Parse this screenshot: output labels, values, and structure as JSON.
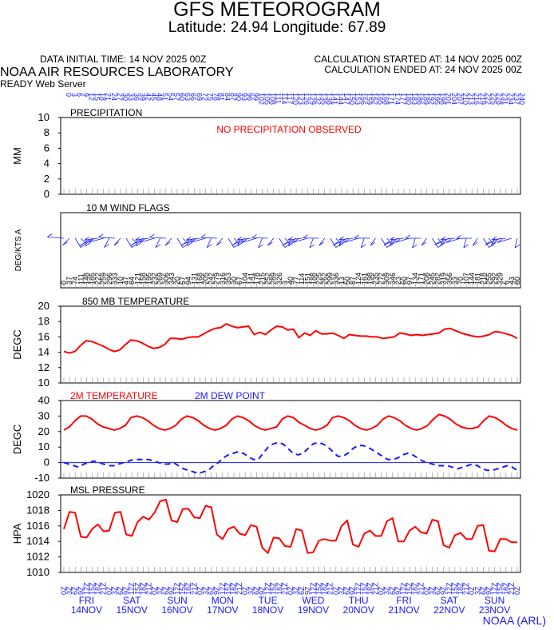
{
  "header": {
    "title": "GFS METEOROGRAM",
    "subtitle": "Latitude: 24.94 Longitude:  67.89",
    "init_time": "DATA INITIAL TIME: 14 NOV 2025 00Z",
    "calc_start": "CALCULATION STARTED AT: 14 NOV 2025 00Z",
    "calc_end": "CALCULATION ENDED AT: 24 NOV 2025 00Z",
    "lab": "NOAA AIR RESOURCES LABORATORY",
    "server": "READY Web Server",
    "credit": "NOAA (ARL)"
  },
  "colors": {
    "red": "#ff0000",
    "blue": "#1a1aff",
    "black": "#000000"
  },
  "chart_data": [
    {
      "type": "line",
      "id": "precip",
      "title": "PRECIPITATION",
      "ylabel": "MM",
      "ylim": [
        0,
        10
      ],
      "yticks": [
        "0",
        "2",
        "4",
        "6",
        "8",
        "10"
      ],
      "annotation": "NO PRECIPITATION OBSERVED",
      "series": []
    },
    {
      "type": "scatter",
      "id": "wind",
      "title": "10 M  WIND FLAGS",
      "ylabel": "DEG/KTS  A",
      "series": []
    },
    {
      "type": "line",
      "id": "t850",
      "title": "850 MB  TEMPERATURE",
      "ylabel": "DEGC",
      "ylim": [
        10,
        20
      ],
      "yticks": [
        "10",
        "12",
        "14",
        "16",
        "18",
        "20"
      ],
      "series": [
        {
          "values": [
            14.1,
            13.9,
            14.1,
            14.9,
            15.5,
            15.4,
            15.1,
            14.8,
            14.4,
            14.1,
            14.3,
            15.0,
            15.6,
            15.5,
            15.2,
            14.8,
            14.5,
            14.6,
            15.0,
            15.8,
            15.8,
            15.7,
            15.9,
            16.0,
            16.0,
            16.4,
            16.8,
            17.1,
            17.2,
            17.7,
            17.4,
            17.2,
            17.3,
            17.4,
            16.3,
            16.6,
            16.3,
            16.9,
            17.4,
            17.3,
            16.9,
            17.0,
            15.9,
            16.5,
            16.2,
            16.8,
            16.4,
            16.4,
            16.5,
            16.2,
            15.8,
            16.3,
            16.2,
            16.1,
            16.1,
            16.0,
            16.0,
            15.8,
            15.9,
            16.0,
            16.5,
            16.4,
            16.2,
            16.3,
            16.2,
            16.3,
            16.4,
            16.5,
            17.0,
            17.1,
            16.8,
            16.5,
            16.3,
            16.1,
            16.0,
            16.1,
            16.3,
            16.7,
            16.6,
            16.4,
            16.2,
            15.8
          ]
        }
      ]
    },
    {
      "type": "line",
      "id": "t2m",
      "title": "2M TEMPERATURE",
      "legend2": "2M  DEW POINT",
      "ylabel": "DEGC",
      "ylim": [
        -10,
        40
      ],
      "yticks": [
        "-10",
        "0",
        "10",
        "20",
        "30",
        "40"
      ],
      "series": [
        {
          "name": "2M TEMPERATURE",
          "values": [
            21,
            23,
            27,
            30,
            30,
            28,
            25,
            23,
            22,
            21,
            22,
            24,
            29,
            30,
            29,
            27,
            24,
            22,
            21,
            22,
            24,
            28,
            30,
            29,
            27,
            24,
            22,
            21,
            22,
            24,
            28,
            30,
            29,
            27,
            24,
            22,
            21,
            22,
            23,
            28,
            30,
            29,
            26,
            24,
            22,
            21,
            22,
            24,
            29,
            30,
            29,
            27,
            24,
            22,
            21,
            22,
            24,
            28,
            30,
            29,
            27,
            24,
            22,
            21,
            22,
            24,
            28,
            31,
            30,
            28,
            25,
            23,
            22,
            22,
            23,
            27,
            30,
            29,
            27,
            24,
            22,
            21
          ]
        },
        {
          "name": "2M  DEW POINT",
          "values": [
            0,
            -1,
            -2,
            -3,
            -1,
            0,
            1,
            0,
            -1,
            -2,
            -2,
            -1,
            0,
            1,
            2,
            2,
            2,
            2,
            1,
            0,
            -1,
            -1,
            0,
            -2,
            -4,
            -5,
            -6,
            -7,
            -6,
            -5,
            -2,
            0,
            3,
            5,
            6,
            7,
            6,
            4,
            2,
            2,
            6,
            10,
            12,
            13,
            12,
            9,
            6,
            5,
            6,
            9,
            12,
            13,
            12,
            10,
            7,
            4,
            4,
            6,
            9,
            11,
            11,
            10,
            8,
            6,
            4,
            2,
            2,
            3,
            5,
            6,
            5,
            3,
            1,
            0,
            -1,
            -2,
            -2,
            -2,
            -3,
            -4,
            -3,
            -2,
            -1,
            -2,
            -4,
            -5,
            -5,
            -4,
            -3,
            -2,
            -3,
            -5
          ]
        }
      ]
    },
    {
      "type": "line",
      "id": "pres",
      "title": "MSL PRESSURE",
      "ylabel": "HPA",
      "ylim": [
        1010,
        1020
      ],
      "yticks": [
        "1010",
        "1012",
        "1014",
        "1016",
        "1018",
        "1020"
      ],
      "series": [
        {
          "values": [
            1015.6,
            1017.8,
            1017.7,
            1014.6,
            1014.5,
            1015.6,
            1016.2,
            1015.3,
            1015.4,
            1017.7,
            1017.8,
            1014.9,
            1014.7,
            1016.5,
            1017.2,
            1016.8,
            1017.7,
            1019.2,
            1019.4,
            1016.7,
            1016.5,
            1018.2,
            1018.2,
            1017.1,
            1017.0,
            1018.6,
            1018.4,
            1014.9,
            1014.3,
            1015.6,
            1015.9,
            1015.0,
            1014.8,
            1016.1,
            1015.9,
            1013.2,
            1012.5,
            1014.5,
            1014.4,
            1013.4,
            1013.3,
            1015.6,
            1015.4,
            1012.5,
            1012.6,
            1014.1,
            1014.3,
            1014.1,
            1014.1,
            1016.0,
            1016.7,
            1013.6,
            1013.3,
            1015.0,
            1015.4,
            1014.7,
            1014.7,
            1016.6,
            1017.0,
            1014.0,
            1014.0,
            1015.4,
            1015.9,
            1015.2,
            1015.0,
            1016.8,
            1016.6,
            1013.5,
            1013.2,
            1014.8,
            1015.1,
            1014.3,
            1014.3,
            1016.0,
            1016.1,
            1012.8,
            1012.7,
            1014.3,
            1014.3,
            1013.9,
            1013.9
          ]
        }
      ]
    }
  ],
  "days": [
    {
      "dow": "FRI",
      "date": "14NOV"
    },
    {
      "dow": "SAT",
      "date": "15NOV"
    },
    {
      "dow": "SUN",
      "date": "16NOV"
    },
    {
      "dow": "MON",
      "date": "17NOV"
    },
    {
      "dow": "TUE",
      "date": "18NOV"
    },
    {
      "dow": "WED",
      "date": "19NOV"
    },
    {
      "dow": "THU",
      "date": "20NOV"
    },
    {
      "dow": "FRI",
      "date": "21NOV"
    },
    {
      "dow": "SAT",
      "date": "22NOV"
    },
    {
      "dow": "SUN",
      "date": "23NOV"
    }
  ],
  "hour_labels": [
    "0",
    "3",
    "6",
    "9",
    "12",
    "15",
    "18",
    "21"
  ]
}
